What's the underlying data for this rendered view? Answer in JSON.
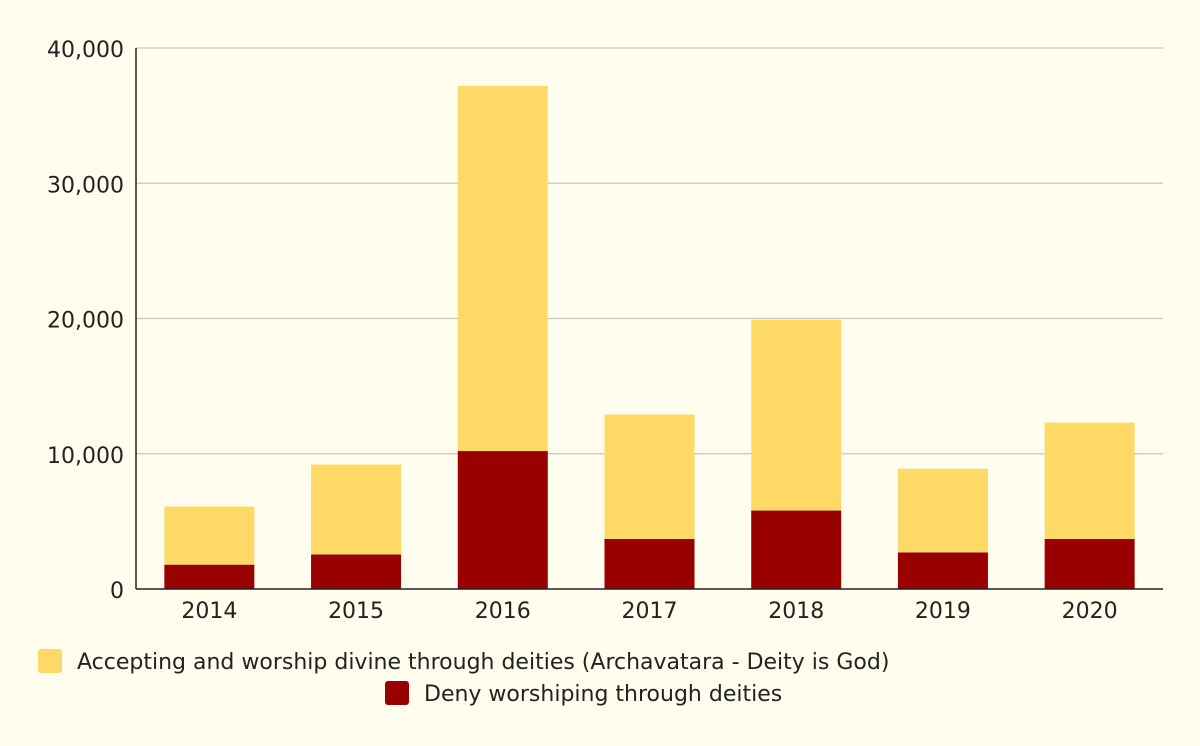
{
  "chart_data": {
    "type": "bar",
    "stacked": true,
    "title": "",
    "xlabel": "",
    "ylabel": "",
    "categories": [
      "2014",
      "2015",
      "2016",
      "2017",
      "2018",
      "2019",
      "2020"
    ],
    "series": [
      {
        "name": "Deny worshiping through deities",
        "color": "#990000",
        "values": [
          1800,
          2550,
          10200,
          3700,
          5800,
          2700,
          3700
        ]
      },
      {
        "name": "Accepting and worship divine through deities (Archavatara - Deity is God)",
        "color": "#ffd966",
        "values": [
          4300,
          6650,
          27000,
          9200,
          14100,
          6200,
          8600
        ]
      }
    ],
    "ylim": [
      0,
      40000
    ],
    "yticks": [
      "0",
      "10,000",
      "20,000",
      "30,000",
      "40,000"
    ],
    "ytick_values": [
      0,
      10000,
      20000,
      30000,
      40000
    ],
    "grid": true,
    "legend_position": "bottom"
  }
}
